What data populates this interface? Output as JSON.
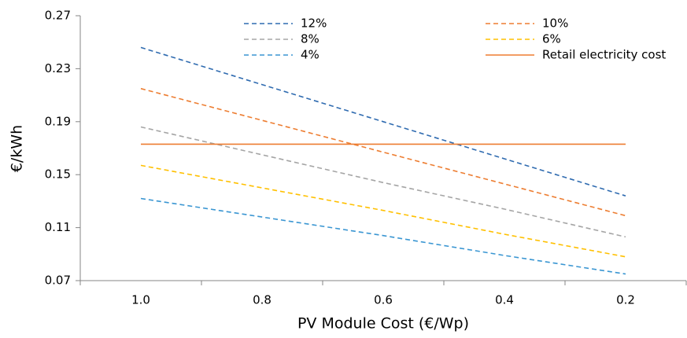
{
  "chart_data": {
    "type": "line",
    "categories": [
      "1.0",
      "0.8",
      "0.6",
      "0.4",
      "0.2"
    ],
    "x_label": "PV Module Cost (€/Wp)",
    "y_label": "€/kWh",
    "ylim": [
      0.07,
      0.27
    ],
    "yticks": [
      0.07,
      0.11,
      0.15,
      0.19,
      0.23,
      0.27
    ],
    "grid": false,
    "series": [
      {
        "name": "12%",
        "color": "#2f6bb0",
        "style": "dashed",
        "values": [
          0.246,
          0.218,
          0.19,
          0.162,
          0.134
        ]
      },
      {
        "name": "10%",
        "color": "#ed7d31",
        "style": "dashed",
        "values": [
          0.215,
          0.191,
          0.167,
          0.143,
          0.119
        ]
      },
      {
        "name": "8%",
        "color": "#a5a5a5",
        "style": "dashed",
        "values": [
          0.186,
          0.165,
          0.144,
          0.124,
          0.103
        ]
      },
      {
        "name": "6%",
        "color": "#ffc000",
        "style": "dashed",
        "values": [
          0.157,
          0.14,
          0.123,
          0.105,
          0.088
        ]
      },
      {
        "name": "4%",
        "color": "#3a96d2",
        "style": "dashed",
        "values": [
          0.132,
          0.118,
          0.104,
          0.089,
          0.075
        ]
      },
      {
        "name": "Retail electricity cost",
        "color": "#ed7d31",
        "style": "solid",
        "values": [
          0.173,
          0.173,
          0.173,
          0.173,
          0.173
        ]
      }
    ]
  }
}
